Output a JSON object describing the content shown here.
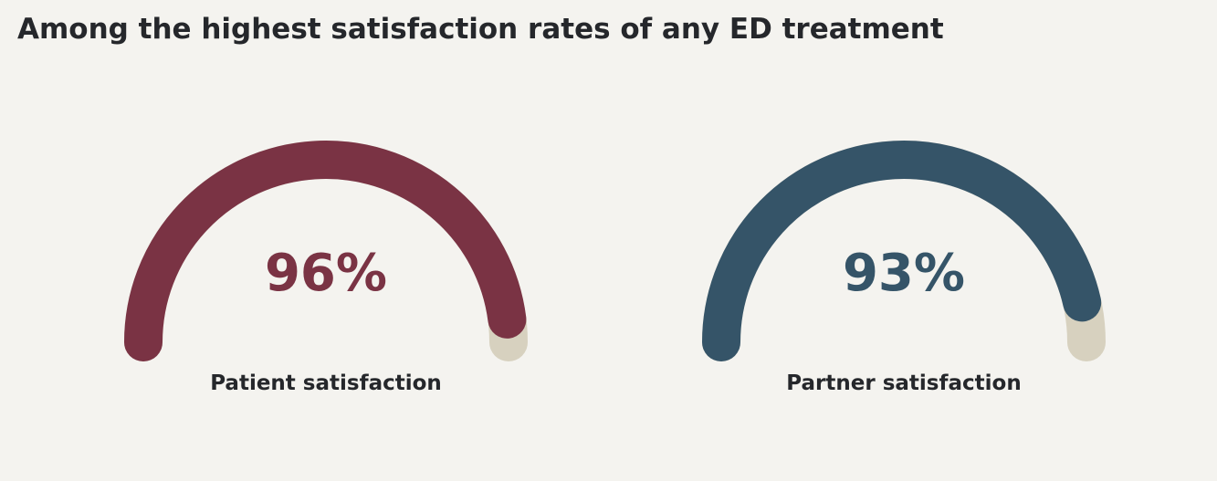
{
  "title": "Among the highest satisfaction rates of any ED treatment",
  "chart_data": [
    {
      "type": "gauge",
      "label": "Patient satisfaction",
      "value": 96,
      "display": "96%",
      "max": 100,
      "color": "#7a3344",
      "track_color": "#d7d1bf"
    },
    {
      "type": "gauge",
      "label": "Partner satisfaction",
      "value": 93,
      "display": "93%",
      "max": 100,
      "color": "#355468",
      "track_color": "#d7d1bf"
    }
  ]
}
